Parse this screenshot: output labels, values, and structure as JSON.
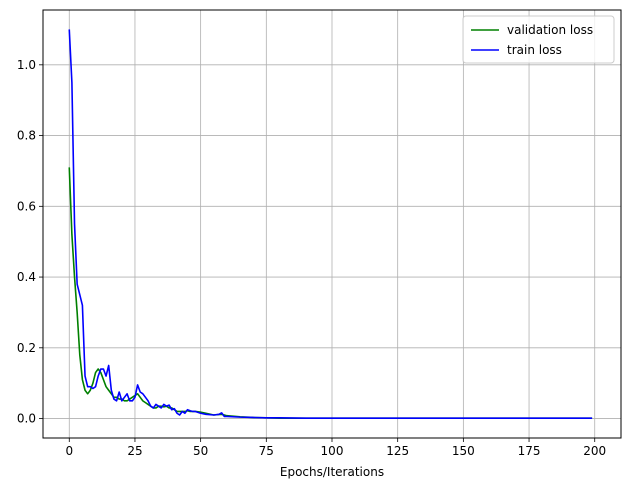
{
  "chart_data": {
    "type": "line",
    "title": "",
    "xlabel": "Epochs/Iterations",
    "ylabel": "",
    "xlim": [
      -10,
      210
    ],
    "ylim": [
      -0.055,
      1.155
    ],
    "xticks": [
      0,
      25,
      50,
      75,
      100,
      125,
      150,
      175,
      200
    ],
    "xtick_labels": [
      "0",
      "25",
      "50",
      "75",
      "100",
      "125",
      "150",
      "175",
      "200"
    ],
    "yticks": [
      0.0,
      0.2,
      0.4,
      0.6,
      0.8,
      1.0
    ],
    "ytick_labels": [
      "0.0",
      "0.2",
      "0.4",
      "0.6",
      "0.8",
      "1.0"
    ],
    "grid": true,
    "legend_position": "top-right",
    "series": [
      {
        "name": "validation loss",
        "color": "#008000",
        "x": [
          0,
          1,
          2,
          3,
          4,
          5,
          6,
          7,
          8,
          9,
          10,
          11,
          12,
          13,
          14,
          15,
          16,
          17,
          18,
          19,
          20,
          21,
          22,
          23,
          24,
          25,
          26,
          27,
          28,
          29,
          30,
          31,
          32,
          33,
          34,
          35,
          36,
          37,
          38,
          39,
          40,
          41,
          42,
          43,
          44,
          45,
          46,
          47,
          48,
          50,
          52,
          55,
          58,
          60,
          65,
          70,
          75,
          80,
          90,
          100,
          125,
          150,
          175,
          199
        ],
        "y": [
          0.71,
          0.52,
          0.4,
          0.3,
          0.18,
          0.11,
          0.08,
          0.07,
          0.08,
          0.1,
          0.13,
          0.14,
          0.13,
          0.11,
          0.09,
          0.08,
          0.07,
          0.06,
          0.06,
          0.055,
          0.055,
          0.05,
          0.05,
          0.055,
          0.06,
          0.065,
          0.07,
          0.06,
          0.05,
          0.045,
          0.04,
          0.035,
          0.03,
          0.03,
          0.035,
          0.035,
          0.033,
          0.035,
          0.03,
          0.03,
          0.025,
          0.02,
          0.02,
          0.02,
          0.02,
          0.022,
          0.02,
          0.02,
          0.02,
          0.018,
          0.015,
          0.01,
          0.012,
          0.008,
          0.005,
          0.003,
          0.002,
          0.001,
          0.001,
          0.001,
          0.001,
          0.001,
          0.001,
          0.001
        ]
      },
      {
        "name": "train loss",
        "color": "#0000ff",
        "x": [
          0,
          1,
          2,
          3,
          4,
          5,
          6,
          7,
          8,
          9,
          10,
          11,
          12,
          13,
          14,
          15,
          16,
          17,
          18,
          19,
          20,
          21,
          22,
          23,
          24,
          25,
          26,
          27,
          28,
          29,
          30,
          31,
          32,
          33,
          34,
          35,
          36,
          37,
          38,
          39,
          40,
          41,
          42,
          43,
          44,
          45,
          46,
          47,
          48,
          50,
          52,
          55,
          57,
          58,
          59,
          60,
          65,
          70,
          75,
          80,
          90,
          100,
          125,
          150,
          175,
          199
        ],
        "y": [
          1.1,
          0.95,
          0.55,
          0.38,
          0.35,
          0.32,
          0.12,
          0.09,
          0.09,
          0.085,
          0.09,
          0.12,
          0.14,
          0.14,
          0.12,
          0.15,
          0.08,
          0.055,
          0.05,
          0.075,
          0.05,
          0.06,
          0.07,
          0.05,
          0.05,
          0.06,
          0.095,
          0.075,
          0.07,
          0.06,
          0.05,
          0.035,
          0.03,
          0.04,
          0.035,
          0.03,
          0.04,
          0.035,
          0.038,
          0.025,
          0.028,
          0.015,
          0.01,
          0.02,
          0.015,
          0.025,
          0.022,
          0.02,
          0.02,
          0.015,
          0.012,
          0.01,
          0.012,
          0.016,
          0.006,
          0.006,
          0.004,
          0.003,
          0.002,
          0.002,
          0.001,
          0.001,
          0.001,
          0.001,
          0.001,
          0.001
        ]
      }
    ]
  }
}
